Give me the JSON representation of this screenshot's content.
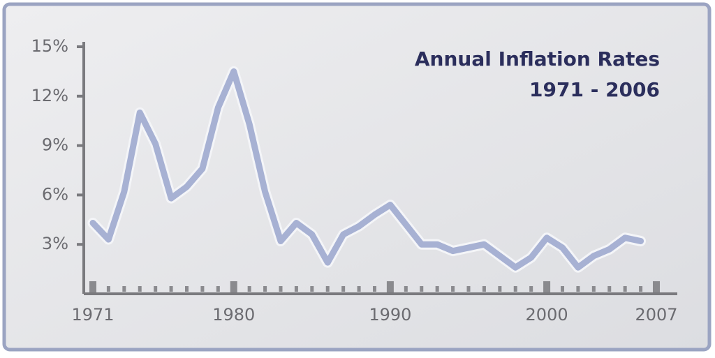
{
  "chart_data": {
    "type": "line",
    "title": "Annual Inflation Rates",
    "subtitle": "1971 - 2006",
    "x": [
      1971,
      1972,
      1973,
      1974,
      1975,
      1976,
      1977,
      1978,
      1979,
      1980,
      1981,
      1982,
      1983,
      1984,
      1985,
      1986,
      1987,
      1988,
      1989,
      1990,
      1991,
      1992,
      1993,
      1994,
      1995,
      1996,
      1997,
      1998,
      1999,
      2000,
      2001,
      2002,
      2003,
      2004,
      2005,
      2006
    ],
    "values": [
      4.3,
      3.3,
      6.2,
      11.0,
      9.1,
      5.8,
      6.5,
      7.6,
      11.3,
      13.5,
      10.3,
      6.2,
      3.2,
      4.3,
      3.6,
      1.9,
      3.6,
      4.1,
      4.8,
      5.4,
      4.2,
      3.0,
      3.0,
      2.6,
      2.8,
      3.0,
      2.3,
      1.6,
      2.2,
      3.4,
      2.8,
      1.6,
      2.3,
      2.7,
      3.4,
      3.2
    ],
    "color": "#a7b1d3",
    "xlim": [
      1971,
      2007
    ],
    "xticks": [
      1971,
      1980,
      1990,
      2000,
      2007
    ],
    "ylim": [
      0,
      15
    ],
    "yticks": [
      {
        "value": 3,
        "label": "3%"
      },
      {
        "value": 6,
        "label": "6%"
      },
      {
        "value": 9,
        "label": "9%"
      },
      {
        "value": 12,
        "label": "12%"
      },
      {
        "value": 15,
        "label": "15%"
      }
    ]
  }
}
